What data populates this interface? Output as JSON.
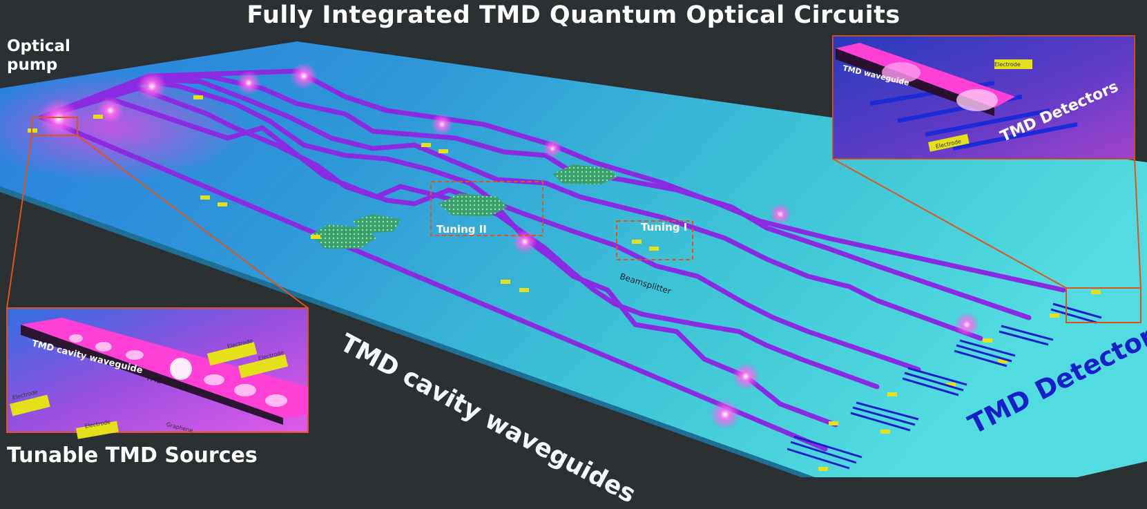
{
  "title": "Fully Integrated TMD Quantum Optical Circuits",
  "labels": {
    "optical_pump_line1": "Optical",
    "optical_pump_line2": "pump",
    "tunable_sources": "Tunable TMD Sources",
    "cavity_waveguides": "TMD cavity waveguides",
    "detectors": "TMD Detectors",
    "tuning_1": "Tuning I",
    "tuning_2": "Tuning II",
    "beamsplitter": "Beamsplitter"
  },
  "inset_detector": {
    "waveguide_label": "TMD waveguide",
    "electrode_label": "Electrode",
    "detectors_label": "TMD Detectors"
  },
  "inset_source": {
    "cavity_waveguide_label": "TMD cavity waveguide",
    "emitter_label": "TMD emitter",
    "electrode_label": "Electrode",
    "graphene_label": "Graphene"
  },
  "colors": {
    "background": "#2b3133",
    "chip": "#3cc6dc",
    "waveguide": "#8a2be2",
    "callout": "#e0541c",
    "electrode": "#e6e01a",
    "detector_blue": "#1620c8"
  }
}
